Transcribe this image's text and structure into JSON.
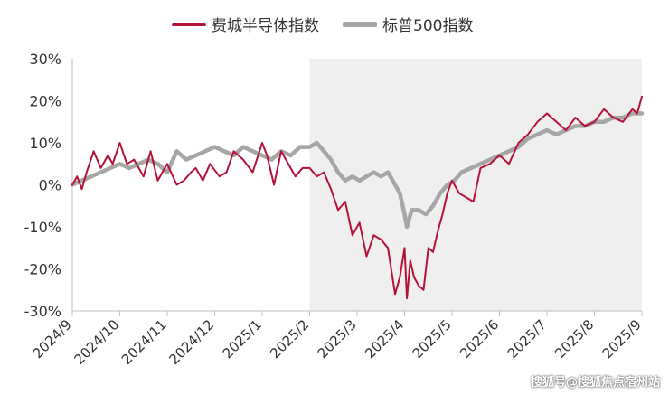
{
  "chart_data": {
    "type": "line",
    "xlabel": "",
    "ylabel": "",
    "ylim": [
      -30,
      30
    ],
    "yticks": [
      "30%",
      "20%",
      "10%",
      "0%",
      "-10%",
      "-20%",
      "-30%"
    ],
    "ytick_values": [
      30,
      20,
      10,
      0,
      -10,
      -20,
      -30
    ],
    "xticks": [
      "2024/9",
      "2024/10",
      "2024/11",
      "2024/12",
      "2025/1",
      "2025/2",
      "2025/3",
      "2025/4",
      "2025/5",
      "2025/6",
      "2025/7",
      "2025/8",
      "2025/9"
    ],
    "shaded_region": {
      "from": "2025/2",
      "to": "2025/9"
    },
    "grid": false,
    "legend_position": "top",
    "colors": {
      "series1": "#b5123a",
      "series2": "#a6a6a6",
      "shade": "#efefef"
    },
    "series": [
      {
        "name": "费城半导体指数",
        "x": [
          0,
          0.1,
          0.2,
          0.3,
          0.45,
          0.6,
          0.75,
          0.85,
          1.0,
          1.15,
          1.3,
          1.5,
          1.65,
          1.8,
          2.0,
          2.2,
          2.35,
          2.5,
          2.6,
          2.75,
          2.9,
          3.1,
          3.25,
          3.4,
          3.6,
          3.8,
          4.0,
          4.1,
          4.25,
          4.4,
          4.55,
          4.7,
          4.85,
          5.0,
          5.15,
          5.3,
          5.45,
          5.6,
          5.75,
          5.9,
          6.05,
          6.2,
          6.35,
          6.5,
          6.65,
          6.8,
          6.9,
          7.0,
          7.05,
          7.12,
          7.2,
          7.3,
          7.4,
          7.5,
          7.6,
          7.7,
          7.8,
          7.9,
          8.0,
          8.15,
          8.3,
          8.45,
          8.6,
          8.8,
          9.0,
          9.2,
          9.4,
          9.6,
          9.8,
          10.0,
          10.2,
          10.4,
          10.6,
          10.8,
          11.0,
          11.2,
          11.4,
          11.6,
          11.8,
          11.9,
          12.0
        ],
        "values": [
          0,
          2,
          -1,
          3,
          8,
          4,
          7,
          5,
          10,
          5,
          6,
          2,
          8,
          1,
          5,
          0,
          1,
          3,
          4,
          1,
          5,
          2,
          3,
          8,
          6,
          3,
          10,
          7,
          0,
          8,
          5,
          2,
          4,
          4,
          2,
          3,
          -1,
          -6,
          -4,
          -12,
          -9,
          -17,
          -12,
          -13,
          -15,
          -26,
          -22,
          -15,
          -27,
          -18,
          -22,
          -24,
          -25,
          -15,
          -16,
          -11,
          -7,
          -2,
          1,
          -2,
          -3,
          -4,
          4,
          5,
          7,
          5,
          10,
          12,
          15,
          17,
          15,
          13,
          16,
          14,
          15,
          18,
          16,
          15,
          18,
          17,
          21
        ]
      },
      {
        "name": "标普500指数",
        "x": [
          0,
          0.2,
          0.4,
          0.6,
          0.8,
          1.0,
          1.2,
          1.4,
          1.6,
          1.8,
          2.0,
          2.2,
          2.4,
          2.6,
          2.8,
          3.0,
          3.2,
          3.4,
          3.6,
          3.8,
          4.0,
          4.2,
          4.4,
          4.6,
          4.8,
          5.0,
          5.15,
          5.3,
          5.45,
          5.6,
          5.75,
          5.9,
          6.05,
          6.2,
          6.35,
          6.5,
          6.65,
          6.8,
          6.9,
          7.0,
          7.05,
          7.15,
          7.3,
          7.45,
          7.6,
          7.75,
          7.9,
          8.05,
          8.2,
          8.4,
          8.6,
          8.8,
          9.0,
          9.2,
          9.4,
          9.6,
          9.8,
          10.0,
          10.2,
          10.4,
          10.6,
          10.8,
          11.0,
          11.2,
          11.4,
          11.6,
          11.8,
          12.0
        ],
        "values": [
          0,
          1,
          2,
          3,
          4,
          5,
          4,
          5,
          6,
          5,
          3,
          8,
          6,
          7,
          8,
          9,
          8,
          7,
          9,
          8,
          7,
          6,
          8,
          7,
          9,
          9,
          10,
          8,
          6,
          3,
          1,
          2,
          1,
          2,
          3,
          2,
          3,
          0,
          -2,
          -7,
          -10,
          -6,
          -6,
          -7,
          -5,
          -2,
          0,
          1,
          3,
          4,
          5,
          6,
          7,
          8,
          9,
          11,
          12,
          13,
          12,
          13,
          14,
          14,
          15,
          15,
          16,
          16,
          17,
          17
        ]
      }
    ]
  },
  "watermark": "搜狐号@搜狐焦点宿州站"
}
